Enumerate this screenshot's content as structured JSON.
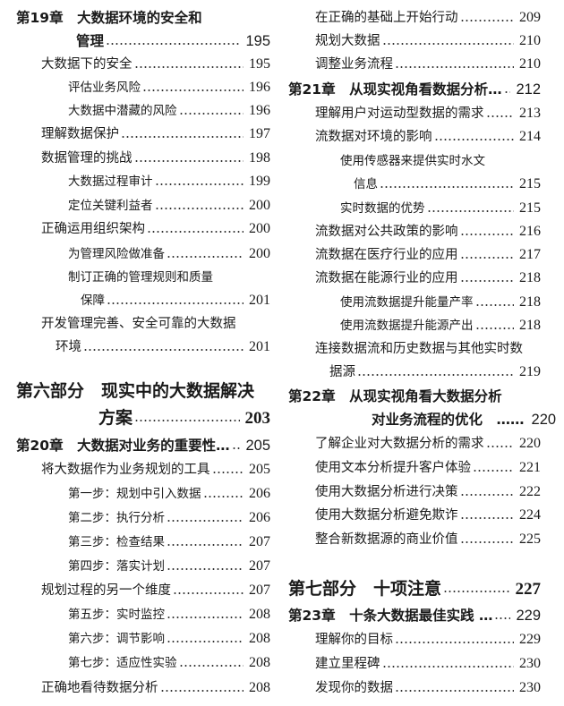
{
  "left": [
    {
      "text": "第19章　大数据环境的安全和"
    },
    {
      "text": "管理",
      "page": "195"
    },
    {
      "text": "大数据下的安全",
      "page": "195"
    },
    {
      "text": "评估业务风险",
      "page": "196"
    },
    {
      "text": "大数据中潜藏的风险",
      "page": "196"
    },
    {
      "text": "理解数据保护",
      "page": "197"
    },
    {
      "text": "数据管理的挑战",
      "page": "198"
    },
    {
      "text": "大数据过程审计",
      "page": "199"
    },
    {
      "text": "定位关键利益者",
      "page": "200"
    },
    {
      "text": "正确运用组织架构",
      "page": "200"
    },
    {
      "text": "为管理风险做准备",
      "page": "200"
    },
    {
      "text": "制订正确的管理规则和质量"
    },
    {
      "text": "保障",
      "page": "201"
    },
    {
      "text": "开发管理完善、安全可靠的大数据"
    },
    {
      "text": "环境",
      "page": "201"
    },
    {
      "text": "第六部分　现实中的大数据解决"
    },
    {
      "text": "方案",
      "page": "203"
    },
    {
      "text": "第20章　大数据对业务的重要性…",
      "page": "205"
    },
    {
      "text": "将大数据作为业务规划的工具",
      "page": "205"
    },
    {
      "text": "第一步：规划中引入数据",
      "page": "206"
    },
    {
      "text": "第二步：执行分析",
      "page": "206"
    },
    {
      "text": "第三步：检查结果",
      "page": "207"
    },
    {
      "text": "第四步：落实计划",
      "page": "207"
    },
    {
      "text": "规划过程的另一个维度",
      "page": "207"
    },
    {
      "text": "第五步：实时监控",
      "page": "208"
    },
    {
      "text": "第六步：调节影响",
      "page": "208"
    },
    {
      "text": "第七步：适应性实验",
      "page": "208"
    },
    {
      "text": "正确地看待数据分析",
      "page": "208"
    }
  ],
  "right": [
    {
      "text": "在正确的基础上开始行动",
      "page": "209"
    },
    {
      "text": "规划大数据",
      "page": "210"
    },
    {
      "text": "调整业务流程",
      "page": "210"
    },
    {
      "text": "第21章　从现实视角看数据分析…",
      "page": "212"
    },
    {
      "text": "理解用户对运动型数据的需求",
      "page": "213"
    },
    {
      "text": "流数据对环境的影响",
      "page": "214"
    },
    {
      "text": "使用传感器来提供实时水文"
    },
    {
      "text": "信息",
      "page": "215"
    },
    {
      "text": "实时数据的优势",
      "page": "215"
    },
    {
      "text": "流数据对公共政策的影响",
      "page": "216"
    },
    {
      "text": "流数据在医疗行业的应用",
      "page": "217"
    },
    {
      "text": "流数据在能源行业的应用",
      "page": "218"
    },
    {
      "text": "使用流数据提升能量产率",
      "page": "218"
    },
    {
      "text": "使用流数据提升能源产出",
      "page": "218"
    },
    {
      "text": "连接数据流和历史数据与其他实时数"
    },
    {
      "text": "据源",
      "page": "219"
    },
    {
      "text": "第22章　从现实视角看大数据分析"
    },
    {
      "text": "对业务流程的优化　……",
      "page": "220"
    },
    {
      "text": "了解企业对大数据分析的需求",
      "page": "220"
    },
    {
      "text": "使用文本分析提升客户体验",
      "page": "221"
    },
    {
      "text": "使用大数据分析进行决策",
      "page": "222"
    },
    {
      "text": "使用大数据分析避免欺诈",
      "page": "224"
    },
    {
      "text": "整合新数据源的商业价值",
      "page": "225"
    },
    {
      "text": "第七部分　十项注意",
      "page": "227"
    },
    {
      "text": "第23章　十条大数据最佳实践 …",
      "page": "229"
    },
    {
      "text": "理解你的目标",
      "page": "229"
    },
    {
      "text": "建立里程碑",
      "page": "230"
    },
    {
      "text": "发现你的数据",
      "page": "230"
    }
  ]
}
